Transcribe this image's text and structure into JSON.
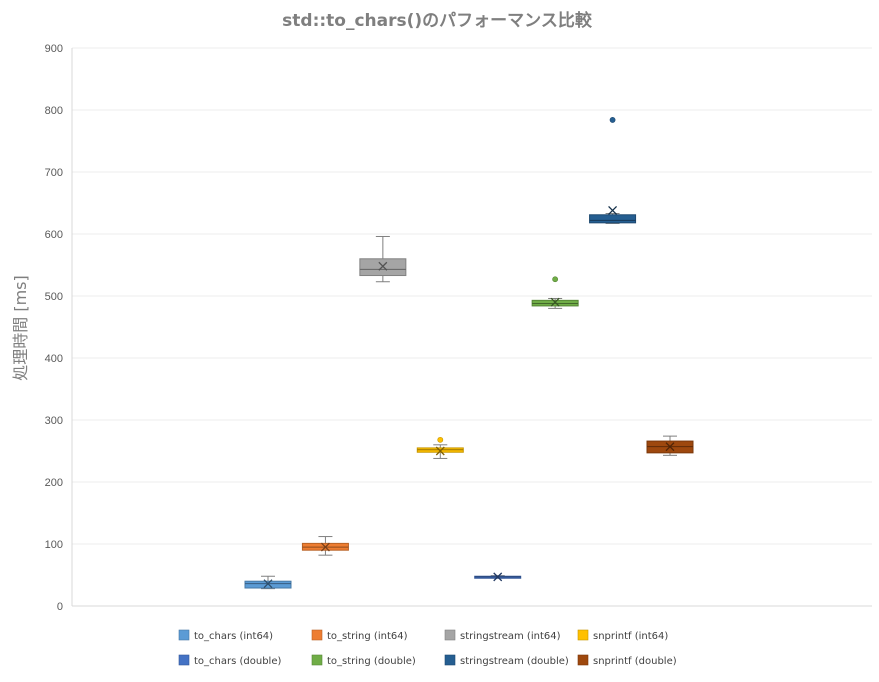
{
  "chart_data": {
    "type": "box",
    "title": "std::to_chars()のパフォーマンス比較",
    "ylabel": "処理時間 [ms]",
    "xlabel": "",
    "ylim": [
      0,
      900
    ],
    "yticks": [
      0,
      100,
      200,
      300,
      400,
      500,
      600,
      700,
      800,
      900
    ],
    "grid": true,
    "legend_position": "bottom",
    "series": [
      {
        "name": "to_chars (int64)",
        "color": "#5b9bd5",
        "min": 28,
        "q1": 29,
        "median": 36,
        "q3": 40,
        "max": 48,
        "mean": 36,
        "outliers": []
      },
      {
        "name": "to_string  (int64)",
        "color": "#ed7d31",
        "min": 82,
        "q1": 90,
        "median": 95,
        "q3": 101,
        "max": 112,
        "mean": 95,
        "outliers": []
      },
      {
        "name": "stringstream  (int64)",
        "color": "#a5a5a5",
        "min": 523,
        "q1": 533,
        "median": 543,
        "q3": 560,
        "max": 596,
        "mean": 548,
        "outliers": []
      },
      {
        "name": "snprintf  (int64)",
        "color": "#ffc000",
        "min": 238,
        "q1": 248,
        "median": 252,
        "q3": 255,
        "max": 260,
        "mean": 250,
        "outliers": [
          268
        ]
      },
      {
        "name": "to_chars (double)",
        "color": "#4472c4",
        "min": 45,
        "q1": 46,
        "median": 47,
        "q3": 48,
        "max": 49,
        "mean": 47,
        "outliers": []
      },
      {
        "name": "to_string (double)",
        "color": "#70ad47",
        "min": 480,
        "q1": 484,
        "median": 488,
        "q3": 493,
        "max": 496,
        "mean": 490,
        "outliers": [
          527
        ]
      },
      {
        "name": "stringstream  (double)",
        "color": "#255e91",
        "min": 617,
        "q1": 618,
        "median": 622,
        "q3": 631,
        "max": 633,
        "mean": 638,
        "outliers": [
          784
        ]
      },
      {
        "name": "snprintf (double)",
        "color": "#9e480e",
        "min": 243,
        "q1": 247,
        "median": 257,
        "q3": 266,
        "max": 274,
        "mean": 257,
        "outliers": []
      }
    ]
  }
}
